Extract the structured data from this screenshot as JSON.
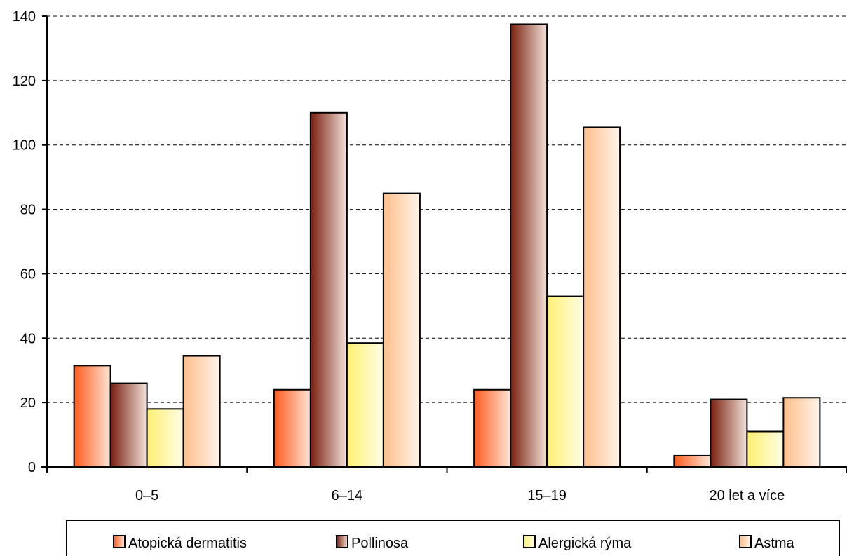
{
  "chart_data": {
    "type": "bar",
    "title": "",
    "xlabel": "",
    "ylabel": "",
    "categories": [
      "0–5",
      "6–14",
      "15–19",
      "20 let a více"
    ],
    "ylim": [
      0,
      140
    ],
    "yticks": [
      0,
      20,
      40,
      60,
      80,
      100,
      120,
      140
    ],
    "grid": true,
    "legend_position": "bottom",
    "series": [
      {
        "name": "Atopická dermatitis",
        "values": [
          31.5,
          24,
          24,
          3.5
        ],
        "color_dark": "#ff5a1e",
        "color_light": "#fde6d6"
      },
      {
        "name": "Pollinosa",
        "values": [
          26,
          110,
          137.5,
          21
        ],
        "color_dark": "#7a1f0e",
        "color_light": "#f2e2da"
      },
      {
        "name": "Alergická rýma",
        "values": [
          18,
          38.5,
          53,
          11
        ],
        "color_dark": "#fff070",
        "color_light": "#fffde6"
      },
      {
        "name": "Astma",
        "values": [
          34.5,
          85,
          105.5,
          21.5
        ],
        "color_dark": "#ffbe8a",
        "color_light": "#fff4ea"
      }
    ]
  }
}
